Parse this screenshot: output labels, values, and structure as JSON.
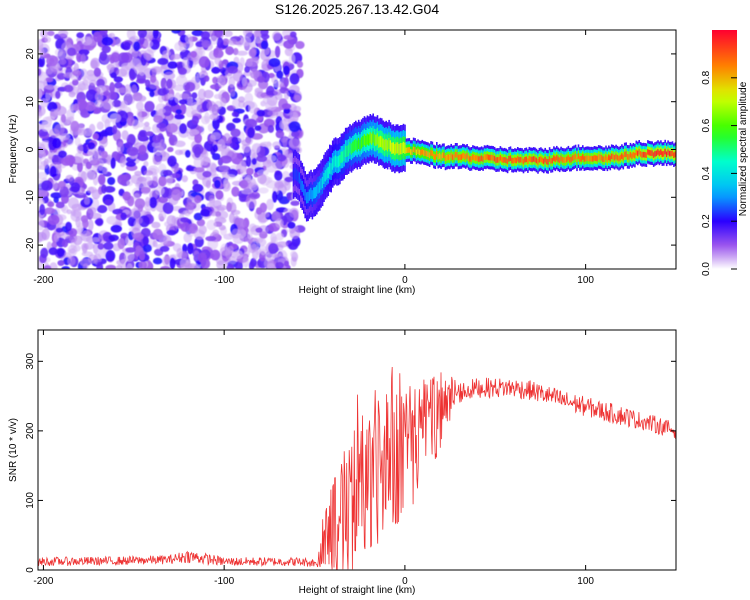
{
  "title": "S126.2025.267.13.42.G04",
  "chart_data": [
    {
      "type": "heatmap",
      "xlabel": "Height of straight line (km)",
      "ylabel": "Frequency (Hz)",
      "xlim": [
        -203,
        150
      ],
      "ylim": [
        -25,
        25
      ],
      "xticks": [
        -200,
        -100,
        0,
        100
      ],
      "yticks": [
        -20,
        -10,
        0,
        10,
        20
      ],
      "noise_region_x": [
        -203,
        -60
      ],
      "noise_density": 0.55,
      "noise_amplitude_range": [
        0.02,
        0.25
      ],
      "frequency_trace": {
        "x": [
          -60,
          -55,
          -50,
          -45,
          -40,
          -35,
          -30,
          -25,
          -20,
          -15,
          -10,
          -5,
          0,
          10,
          20,
          30,
          40,
          50,
          60,
          70,
          80,
          90,
          100,
          110,
          120,
          130,
          140,
          150
        ],
        "y": [
          -5,
          -10,
          -9,
          -6,
          -3,
          -1.5,
          0.5,
          1.0,
          2.5,
          1.8,
          1.0,
          0.2,
          0.0,
          -0.8,
          -1.5,
          -1.5,
          -1.8,
          -2.0,
          -2.2,
          -2.3,
          -2.2,
          -1.8,
          -1.7,
          -1.8,
          -1.5,
          -0.8,
          -0.8,
          -0.8
        ],
        "amplitude": [
          0.25,
          0.3,
          0.35,
          0.4,
          0.45,
          0.5,
          0.55,
          0.6,
          0.65,
          0.7,
          0.72,
          0.75,
          0.8,
          0.85,
          0.88,
          0.9,
          0.9,
          0.92,
          0.93,
          0.93,
          0.92,
          0.9,
          0.9,
          0.92,
          0.93,
          0.95,
          0.97,
          0.97
        ]
      },
      "colorbar": {
        "label": "Normalized spectral amplitude",
        "range": [
          0,
          1
        ],
        "ticks": [
          "0.0",
          "0.2",
          "0.4",
          "0.6",
          "0.8"
        ],
        "tick_values": [
          0.0,
          0.2,
          0.4,
          0.6,
          0.8
        ]
      }
    },
    {
      "type": "line",
      "xlabel": "Height of straight line (km)",
      "ylabel": "SNR (10 * v/v)",
      "xlim": [
        -203,
        150
      ],
      "ylim": [
        0,
        345
      ],
      "xticks": [
        -200,
        -100,
        0,
        100
      ],
      "yticks": [
        0,
        100,
        200,
        300
      ],
      "color": "#ee3333",
      "series_envelope": {
        "x": [
          -203,
          -160,
          -130,
          -120,
          -100,
          -60,
          -48,
          -46,
          -40,
          -35,
          -30,
          -25,
          -20,
          -15,
          -10,
          -5,
          0,
          5,
          10,
          15,
          20,
          25,
          30,
          40,
          50,
          60,
          70,
          80,
          90,
          100,
          110,
          120,
          130,
          140,
          150
        ],
        "mean": [
          12,
          13,
          15,
          20,
          12,
          12,
          10,
          35,
          60,
          80,
          95,
          110,
          125,
          135,
          145,
          155,
          165,
          180,
          200,
          215,
          230,
          245,
          255,
          262,
          262,
          262,
          258,
          250,
          242,
          235,
          228,
          222,
          215,
          208,
          200
        ],
        "spread": [
          8,
          8,
          8,
          12,
          8,
          8,
          8,
          40,
          70,
          90,
          100,
          110,
          110,
          110,
          105,
          100,
          95,
          90,
          80,
          70,
          55,
          35,
          20,
          18,
          18,
          18,
          18,
          18,
          18,
          18,
          18,
          18,
          16,
          16,
          15
        ]
      }
    }
  ]
}
